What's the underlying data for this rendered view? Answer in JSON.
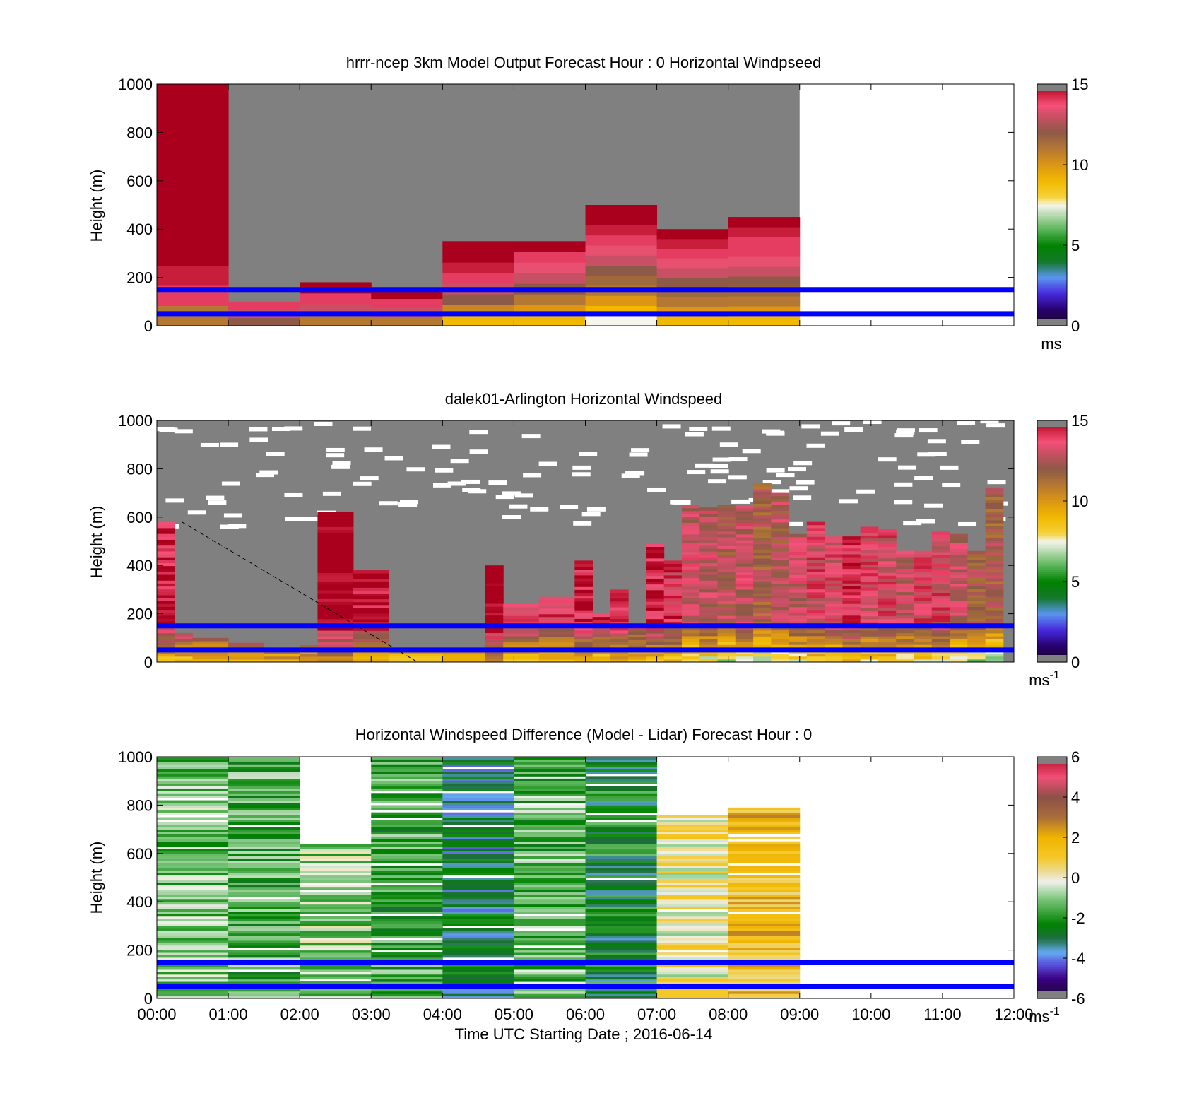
{
  "colors": {
    "blue_line": "#0000ff",
    "no_data_gray": "#808080",
    "background": "#ffffff"
  },
  "chart_data": [
    {
      "type": "heatmap",
      "title": "hrrr-ncep 3km Model Output   Forecast Hour : 0 Horizontal Windpseed",
      "ylabel": "Height (m)",
      "ylim": [
        0,
        1000
      ],
      "yticks": [
        "0",
        "200",
        "400",
        "600",
        "800",
        "1000"
      ],
      "xlim_hours": [
        0,
        12
      ],
      "reference_lines_m": [
        50,
        150
      ],
      "colorbar": {
        "min": 0,
        "max": 15,
        "ticks": [
          "0",
          "5",
          "10",
          "15"
        ],
        "unit": "ms"
      },
      "columns": [
        {
          "start_hour": 0,
          "top_m": 1000,
          "values": [
            11,
            14,
            14.5,
            15,
            15,
            15,
            15.5,
            16,
            16,
            15.5,
            15,
            15
          ]
        },
        {
          "start_hour": 1,
          "top_m": 100,
          "values": [
            12,
            13,
            14
          ]
        },
        {
          "start_hour": 2,
          "top_m": 180,
          "values": [
            11,
            13,
            14,
            15
          ]
        },
        {
          "start_hour": 3,
          "top_m": 150,
          "values": [
            11,
            13,
            14,
            15
          ]
        },
        {
          "start_hour": 4,
          "top_m": 350,
          "values": [
            9,
            10.5,
            12,
            13,
            14,
            14.5,
            15,
            15.5
          ]
        },
        {
          "start_hour": 5,
          "top_m": 350,
          "values": [
            9,
            10,
            11,
            12,
            13,
            13.5,
            14,
            15
          ]
        },
        {
          "start_hour": 6,
          "top_m": 500,
          "values": [
            7.5,
            9,
            10,
            11,
            11.5,
            12,
            13,
            13.5,
            14,
            14.5,
            15,
            15.5
          ]
        },
        {
          "start_hour": 7,
          "top_m": 400,
          "values": [
            9,
            10,
            11,
            11.5,
            12,
            13,
            13.5,
            14,
            14.5,
            15
          ]
        },
        {
          "start_hour": 8,
          "top_m": 450,
          "values": [
            9,
            10,
            11,
            11.5,
            12,
            13,
            13.5,
            14,
            14,
            14.5,
            15
          ]
        }
      ]
    },
    {
      "type": "heatmap",
      "title": "dalek01-Arlington  Horizontal Windspeed",
      "ylabel": "Height (m)",
      "ylim": [
        0,
        1000
      ],
      "yticks": [
        "0",
        "200",
        "400",
        "600",
        "800",
        "1000"
      ],
      "xlim_hours": [
        0,
        12
      ],
      "reference_lines_m": [
        50,
        150
      ],
      "colorbar": {
        "min": 0,
        "max": 15,
        "ticks": [
          "0",
          "5",
          "10",
          "15"
        ],
        "unit": "ms",
        "unit_exp": "-1"
      },
      "diagonal_line": {
        "start": [
          0.35,
          580
        ],
        "end": [
          3.65,
          0
        ]
      },
      "profiles": [
        {
          "start_hour": 0.0,
          "top_m": 580,
          "base_speed": 14.5
        },
        {
          "start_hour": 0.25,
          "top_m": 120,
          "base_speed": 14.5
        },
        {
          "start_hour": 0.5,
          "top_m": 100,
          "base_speed": 14.5
        },
        {
          "start_hour": 1.0,
          "top_m": 80,
          "base_speed": 15
        },
        {
          "start_hour": 1.5,
          "top_m": 60,
          "base_speed": 15
        },
        {
          "start_hour": 2.0,
          "top_m": 70,
          "base_speed": 15
        },
        {
          "start_hour": 2.25,
          "top_m": 620,
          "base_speed": 15.5
        },
        {
          "start_hour": 2.75,
          "top_m": 380,
          "base_speed": 15
        },
        {
          "start_hour": 3.25,
          "top_m": 50,
          "base_speed": 14
        },
        {
          "start_hour": 4.0,
          "top_m": 50,
          "base_speed": 14
        },
        {
          "start_hour": 4.6,
          "top_m": 400,
          "base_speed": 15.5
        },
        {
          "start_hour": 4.85,
          "top_m": 240,
          "base_speed": 14
        },
        {
          "start_hour": 5.35,
          "top_m": 270,
          "base_speed": 14
        },
        {
          "start_hour": 5.85,
          "top_m": 420,
          "base_speed": 14.5
        },
        {
          "start_hour": 6.1,
          "top_m": 200,
          "base_speed": 14
        },
        {
          "start_hour": 6.35,
          "top_m": 300,
          "base_speed": 14.5
        },
        {
          "start_hour": 6.6,
          "top_m": 150,
          "base_speed": 14
        },
        {
          "start_hour": 6.85,
          "top_m": 490,
          "base_speed": 14.5
        },
        {
          "start_hour": 7.1,
          "top_m": 420,
          "base_speed": 14
        },
        {
          "start_hour": 7.35,
          "top_m": 650,
          "base_speed": 13
        },
        {
          "start_hour": 7.6,
          "top_m": 640,
          "base_speed": 13
        },
        {
          "start_hour": 7.85,
          "top_m": 650,
          "base_speed": 12.5
        },
        {
          "start_hour": 8.1,
          "top_m": 650,
          "base_speed": 13
        },
        {
          "start_hour": 8.35,
          "top_m": 740,
          "base_speed": 12
        },
        {
          "start_hour": 8.6,
          "top_m": 700,
          "base_speed": 12.5
        },
        {
          "start_hour": 8.85,
          "top_m": 530,
          "base_speed": 13
        },
        {
          "start_hour": 9.1,
          "top_m": 580,
          "base_speed": 13.5
        },
        {
          "start_hour": 9.35,
          "top_m": 520,
          "base_speed": 13.5
        },
        {
          "start_hour": 9.6,
          "top_m": 520,
          "base_speed": 14
        },
        {
          "start_hour": 9.85,
          "top_m": 560,
          "base_speed": 13.5
        },
        {
          "start_hour": 10.1,
          "top_m": 550,
          "base_speed": 13.5
        },
        {
          "start_hour": 10.35,
          "top_m": 460,
          "base_speed": 13
        },
        {
          "start_hour": 10.6,
          "top_m": 460,
          "base_speed": 13.5
        },
        {
          "start_hour": 10.85,
          "top_m": 540,
          "base_speed": 13.5
        },
        {
          "start_hour": 11.1,
          "top_m": 530,
          "base_speed": 13
        },
        {
          "start_hour": 11.35,
          "top_m": 460,
          "base_speed": 12
        },
        {
          "start_hour": 11.6,
          "top_m": 720,
          "base_speed": 12
        }
      ]
    },
    {
      "type": "heatmap",
      "title": "Horizontal Windspeed Difference (Model - Lidar) Forecast Hour : 0",
      "xlabel": "Time UTC  Starting Date ; 2016-06-14",
      "ylabel": "Height (m)",
      "ylim": [
        0,
        1000
      ],
      "yticks": [
        "0",
        "200",
        "400",
        "600",
        "800",
        "1000"
      ],
      "xticks": [
        "00:00",
        "01:00",
        "02:00",
        "03:00",
        "04:00",
        "05:00",
        "06:00",
        "07:00",
        "08:00",
        "09:00",
        "10:00",
        "11:00",
        "12:00"
      ],
      "xlim_hours": [
        0,
        12
      ],
      "reference_lines_m": [
        50,
        150
      ],
      "colorbar": {
        "min": -6,
        "max": 6,
        "ticks": [
          "-6",
          "-4",
          "-2",
          "0",
          "2",
          "4",
          "6"
        ],
        "unit": "ms",
        "unit_exp": "-1"
      },
      "columns": [
        {
          "start_hour": 0,
          "top_m": 1000,
          "mean_diff": -1.2
        },
        {
          "start_hour": 1,
          "top_m": 1000,
          "mean_diff": -1.6
        },
        {
          "start_hour": 2,
          "top_m": 640,
          "mean_diff": -0.9
        },
        {
          "start_hour": 3,
          "top_m": 1000,
          "mean_diff": -1.8
        },
        {
          "start_hour": 4,
          "top_m": 1000,
          "mean_diff": -3.1
        },
        {
          "start_hour": 5,
          "top_m": 1000,
          "mean_diff": -1.4
        },
        {
          "start_hour": 6,
          "top_m": 1000,
          "mean_diff": -2.4
        },
        {
          "start_hour": 7,
          "top_m": 760,
          "mean_diff": 0.2
        },
        {
          "start_hour": 8,
          "top_m": 790,
          "mean_diff": 1.6
        }
      ]
    }
  ]
}
